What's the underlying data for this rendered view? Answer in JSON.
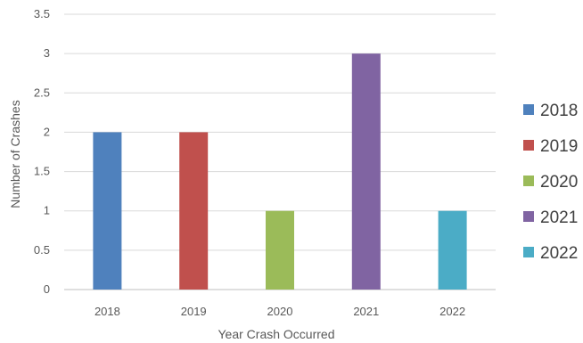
{
  "chart_data": {
    "type": "bar",
    "categories": [
      "2018",
      "2019",
      "2020",
      "2021",
      "2022"
    ],
    "series": [
      {
        "name": "2018",
        "values": [
          2,
          null,
          null,
          null,
          null
        ],
        "color": "#4f81bd"
      },
      {
        "name": "2019",
        "values": [
          null,
          2,
          null,
          null,
          null
        ],
        "color": "#c0504d"
      },
      {
        "name": "2020",
        "values": [
          null,
          null,
          1,
          null,
          null
        ],
        "color": "#9bbb59"
      },
      {
        "name": "2021",
        "values": [
          null,
          null,
          null,
          3,
          null
        ],
        "color": "#8064a2"
      },
      {
        "name": "2022",
        "values": [
          null,
          null,
          null,
          null,
          1
        ],
        "color": "#4bacc6"
      }
    ],
    "xlabel": "Year Crash Occurred",
    "ylabel": "Number of Crashes",
    "ylim": [
      0,
      3.5
    ],
    "yticks": [
      "0",
      "0.5",
      "1",
      "1.5",
      "2",
      "2.5",
      "3",
      "3.5"
    ],
    "grid": true,
    "legend_position": "right"
  }
}
